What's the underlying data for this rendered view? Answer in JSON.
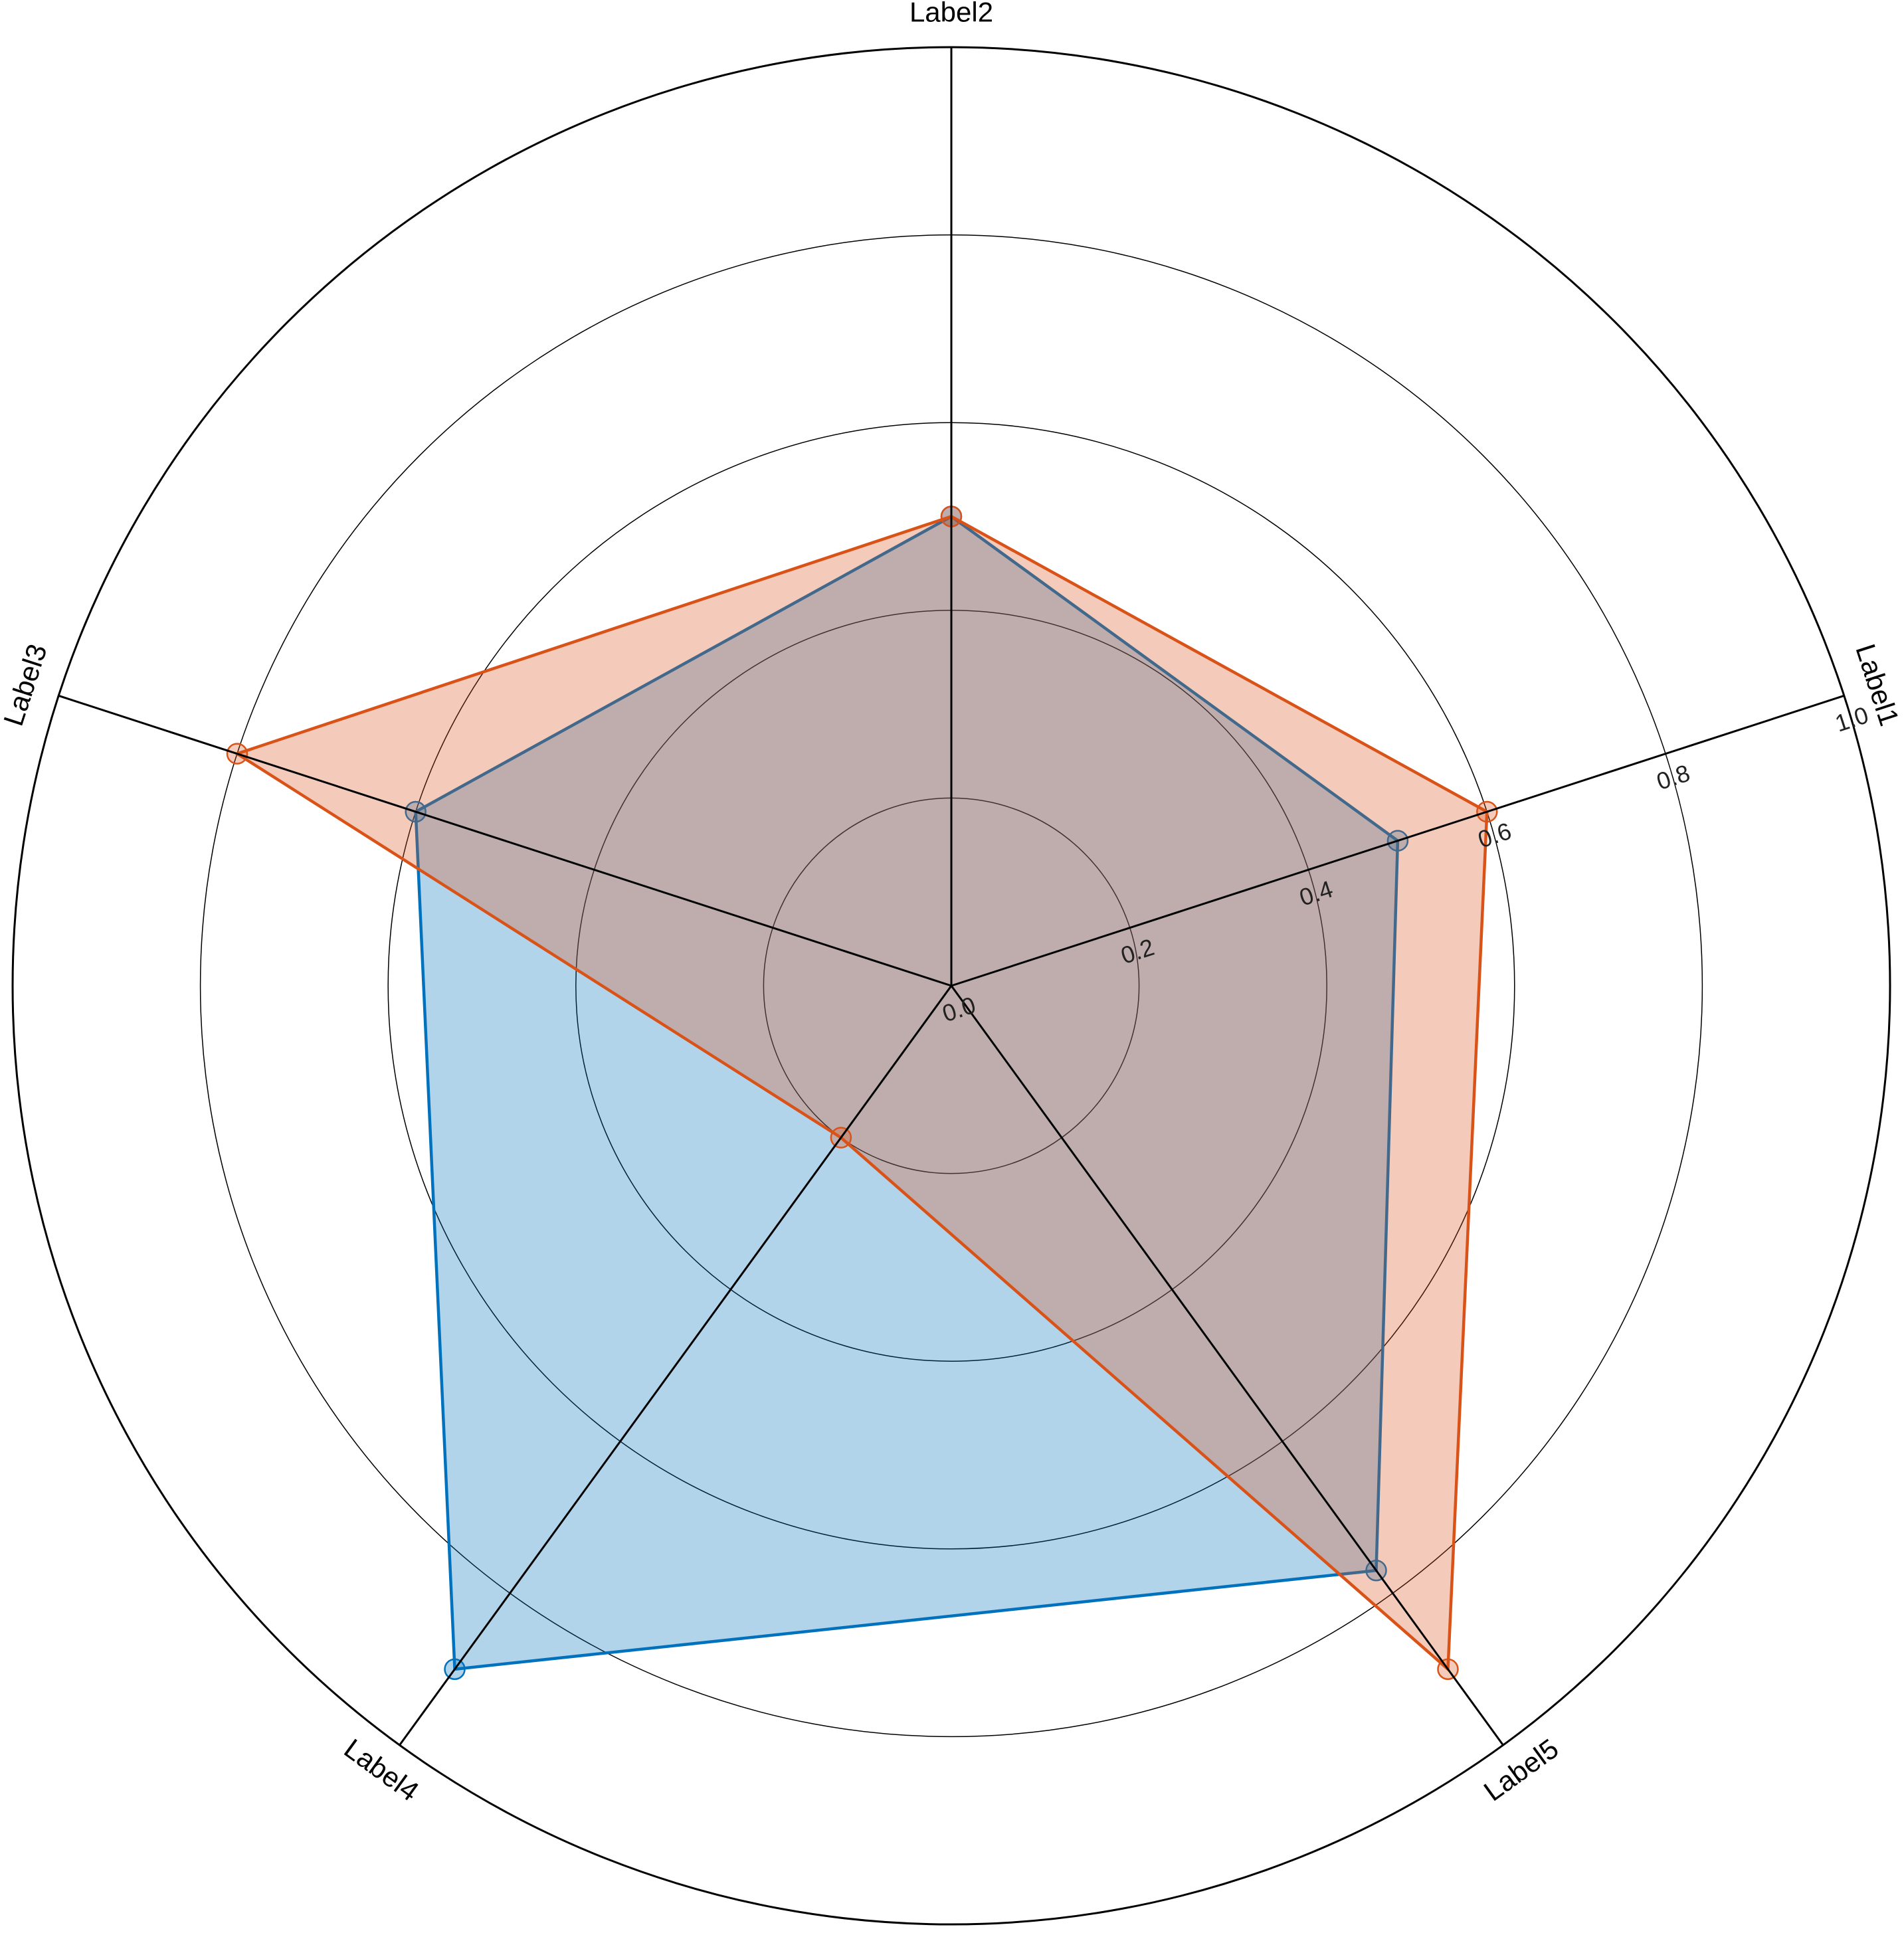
{
  "chart_data": {
    "type": "radar",
    "categories": [
      "Label1",
      "Label2",
      "Label3",
      "Label4",
      "Label5"
    ],
    "series": [
      {
        "values": [
          0.5,
          0.5,
          0.6,
          0.9,
          0.77
        ],
        "color": "#0072BD"
      },
      {
        "values": [
          0.6,
          0.5,
          0.8,
          0.2,
          0.9
        ],
        "color": "#D95319"
      }
    ],
    "rlim": [
      0,
      1
    ],
    "rticks": [
      0.0,
      0.2,
      0.4,
      0.6,
      0.8,
      1.0
    ],
    "rtick_labels": [
      "0.0",
      "0.2",
      "0.4",
      "0.6",
      "0.8",
      "1.0"
    ],
    "grid": true,
    "fill_opacity": 0.3,
    "markers": "circle"
  }
}
